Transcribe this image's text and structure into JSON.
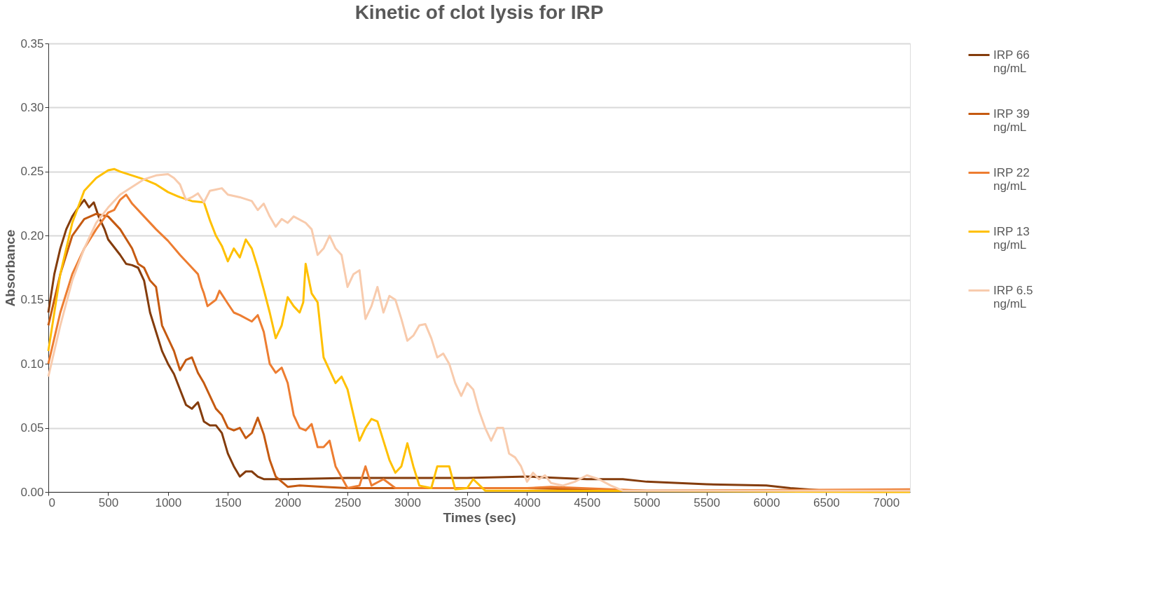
{
  "chart_data": {
    "type": "line",
    "title": "Kinetic of clot lysis for IRP",
    "xlabel": "Times (sec)",
    "ylabel": "Absorbance",
    "xlim": [
      0,
      7200
    ],
    "xticks": [
      0,
      500,
      1000,
      1500,
      2000,
      2500,
      3000,
      3500,
      4000,
      4500,
      5000,
      5500,
      6000,
      6500,
      7000
    ],
    "ylim": [
      0,
      0.35
    ],
    "yticks": [
      {
        "value": 0,
        "label": "0.00"
      },
      {
        "value": 0.05,
        "label": "0.05"
      },
      {
        "value": 0.1,
        "label": "0.10"
      },
      {
        "value": 0.15,
        "label": "0.15"
      },
      {
        "value": 0.2,
        "label": "0.20"
      },
      {
        "value": 0.25,
        "label": "0.25"
      },
      {
        "value": 0.3,
        "label": "0.30"
      },
      {
        "value": 0.35,
        "label": "0.35"
      }
    ],
    "grid": "y",
    "legend": "right",
    "marker": "none",
    "line_style": "solid",
    "series": [
      {
        "name": "IRP 66 ng/mL",
        "color": "#843c0c",
        "x": [
          0,
          50,
          100,
          150,
          200,
          250,
          300,
          340,
          380,
          420,
          470,
          500,
          600,
          650,
          700,
          750,
          800,
          850,
          900,
          950,
          1000,
          1050,
          1100,
          1150,
          1200,
          1250,
          1300,
          1350,
          1400,
          1450,
          1500,
          1550,
          1600,
          1650,
          1700,
          1750,
          1800,
          2000,
          2500,
          3000,
          3500,
          4000,
          4500,
          4800,
          5000,
          5500,
          6000,
          6200,
          6500,
          7200
        ],
        "values": [
          0.14,
          0.17,
          0.19,
          0.205,
          0.215,
          0.222,
          0.228,
          0.222,
          0.226,
          0.215,
          0.205,
          0.197,
          0.185,
          0.178,
          0.177,
          0.175,
          0.165,
          0.14,
          0.125,
          0.11,
          0.1,
          0.092,
          0.08,
          0.068,
          0.065,
          0.07,
          0.055,
          0.052,
          0.052,
          0.046,
          0.03,
          0.02,
          0.012,
          0.016,
          0.016,
          0.012,
          0.01,
          0.01,
          0.011,
          0.011,
          0.011,
          0.012,
          0.01,
          0.01,
          0.008,
          0.006,
          0.005,
          0.003,
          0.001,
          0.001
        ]
      },
      {
        "name": "IRP 39 ng/mL",
        "color": "#c55a11",
        "x": [
          0,
          100,
          200,
          300,
          400,
          500,
          600,
          700,
          750,
          800,
          850,
          900,
          950,
          1000,
          1050,
          1100,
          1150,
          1200,
          1250,
          1300,
          1350,
          1400,
          1450,
          1500,
          1550,
          1600,
          1650,
          1700,
          1750,
          1800,
          1850,
          1900,
          2000,
          2100,
          2300,
          2500,
          3000,
          4000,
          5000,
          7200
        ],
        "values": [
          0.13,
          0.17,
          0.2,
          0.213,
          0.217,
          0.215,
          0.205,
          0.19,
          0.178,
          0.175,
          0.165,
          0.16,
          0.13,
          0.12,
          0.11,
          0.095,
          0.103,
          0.105,
          0.093,
          0.085,
          0.075,
          0.065,
          0.06,
          0.05,
          0.048,
          0.05,
          0.042,
          0.046,
          0.058,
          0.045,
          0.025,
          0.012,
          0.004,
          0.005,
          0.004,
          0.003,
          0.003,
          0.003,
          0.001,
          0.001
        ]
      },
      {
        "name": "IRP 22 ng/mL",
        "color": "#ed7d31",
        "x": [
          0,
          100,
          200,
          300,
          400,
          500,
          550,
          600,
          650,
          700,
          800,
          900,
          1000,
          1100,
          1200,
          1250,
          1280,
          1300,
          1330,
          1400,
          1430,
          1500,
          1550,
          1600,
          1700,
          1750,
          1800,
          1850,
          1900,
          1950,
          2000,
          2050,
          2100,
          2150,
          2200,
          2250,
          2300,
          2350,
          2400,
          2500,
          2600,
          2650,
          2700,
          2800,
          2900,
          3000,
          4000,
          4200,
          5000,
          7200
        ],
        "values": [
          0.1,
          0.14,
          0.17,
          0.19,
          0.205,
          0.218,
          0.22,
          0.228,
          0.232,
          0.225,
          0.215,
          0.205,
          0.196,
          0.185,
          0.175,
          0.17,
          0.16,
          0.155,
          0.145,
          0.15,
          0.157,
          0.147,
          0.14,
          0.138,
          0.133,
          0.138,
          0.125,
          0.1,
          0.093,
          0.097,
          0.085,
          0.06,
          0.05,
          0.048,
          0.053,
          0.035,
          0.035,
          0.04,
          0.02,
          0.003,
          0.005,
          0.02,
          0.005,
          0.01,
          0.003,
          0.003,
          0.003,
          0.004,
          0.001,
          0.002
        ]
      },
      {
        "name": "IRP 13 ng/mL",
        "color": "#ffc000",
        "x": [
          0,
          100,
          200,
          300,
          400,
          500,
          550,
          600,
          700,
          800,
          900,
          1000,
          1100,
          1200,
          1300,
          1350,
          1400,
          1450,
          1500,
          1550,
          1600,
          1650,
          1700,
          1750,
          1800,
          1850,
          1900,
          1950,
          2000,
          2050,
          2100,
          2130,
          2150,
          2200,
          2250,
          2300,
          2350,
          2400,
          2450,
          2500,
          2550,
          2600,
          2650,
          2700,
          2750,
          2800,
          2850,
          2900,
          2950,
          3000,
          3050,
          3100,
          3200,
          3250,
          3350,
          3400,
          3500,
          3550,
          3650,
          4000,
          7200
        ],
        "values": [
          0.11,
          0.17,
          0.21,
          0.235,
          0.245,
          0.251,
          0.252,
          0.25,
          0.247,
          0.244,
          0.24,
          0.234,
          0.23,
          0.227,
          0.226,
          0.212,
          0.2,
          0.192,
          0.18,
          0.19,
          0.183,
          0.197,
          0.19,
          0.175,
          0.158,
          0.14,
          0.12,
          0.13,
          0.152,
          0.145,
          0.14,
          0.148,
          0.178,
          0.155,
          0.148,
          0.105,
          0.095,
          0.085,
          0.09,
          0.08,
          0.06,
          0.04,
          0.05,
          0.057,
          0.055,
          0.04,
          0.025,
          0.015,
          0.02,
          0.038,
          0.02,
          0.005,
          0.003,
          0.02,
          0.02,
          0.002,
          0.003,
          0.01,
          0.001,
          0.001,
          0
        ]
      },
      {
        "name": "IRP 6.5 ng/mL",
        "color": "#f8cbad",
        "x": [
          0,
          100,
          200,
          300,
          400,
          500,
          600,
          700,
          800,
          900,
          1000,
          1050,
          1100,
          1150,
          1200,
          1250,
          1300,
          1350,
          1400,
          1450,
          1500,
          1600,
          1700,
          1750,
          1800,
          1850,
          1900,
          1950,
          2000,
          2050,
          2150,
          2200,
          2250,
          2300,
          2350,
          2400,
          2450,
          2500,
          2550,
          2600,
          2650,
          2700,
          2750,
          2800,
          2850,
          2900,
          2950,
          3000,
          3050,
          3100,
          3150,
          3200,
          3250,
          3300,
          3350,
          3400,
          3450,
          3500,
          3550,
          3600,
          3650,
          3700,
          3750,
          3800,
          3850,
          3900,
          3950,
          4000,
          4050,
          4100,
          4150,
          4200,
          4300,
          4400,
          4500,
          4600,
          4700,
          4800,
          5000,
          7200
        ],
        "values": [
          0.09,
          0.13,
          0.165,
          0.19,
          0.21,
          0.222,
          0.232,
          0.238,
          0.244,
          0.247,
          0.248,
          0.245,
          0.24,
          0.228,
          0.23,
          0.233,
          0.226,
          0.235,
          0.236,
          0.237,
          0.232,
          0.23,
          0.227,
          0.22,
          0.225,
          0.215,
          0.207,
          0.213,
          0.21,
          0.215,
          0.21,
          0.205,
          0.185,
          0.19,
          0.2,
          0.19,
          0.185,
          0.16,
          0.17,
          0.173,
          0.135,
          0.145,
          0.16,
          0.14,
          0.153,
          0.15,
          0.135,
          0.118,
          0.122,
          0.13,
          0.131,
          0.12,
          0.105,
          0.108,
          0.1,
          0.085,
          0.075,
          0.085,
          0.08,
          0.063,
          0.05,
          0.04,
          0.05,
          0.05,
          0.03,
          0.027,
          0.02,
          0.008,
          0.015,
          0.01,
          0.013,
          0.007,
          0.005,
          0.008,
          0.013,
          0.01,
          0.005,
          0.001,
          0.001,
          0.001
        ]
      }
    ]
  }
}
